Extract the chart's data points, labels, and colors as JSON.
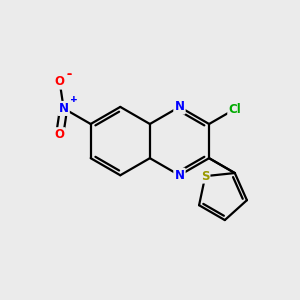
{
  "background_color": "#ebebeb",
  "bond_color": "#000000",
  "bond_width": 1.6,
  "atom_colors": {
    "N": "#0000ff",
    "O": "#ff0000",
    "S": "#999900",
    "Cl": "#00aa00",
    "C": "#000000"
  },
  "font_size": 8.5,
  "figsize": [
    3.0,
    3.0
  ],
  "dpi": 100,
  "xlim": [
    0,
    10
  ],
  "ylim": [
    0,
    10
  ]
}
